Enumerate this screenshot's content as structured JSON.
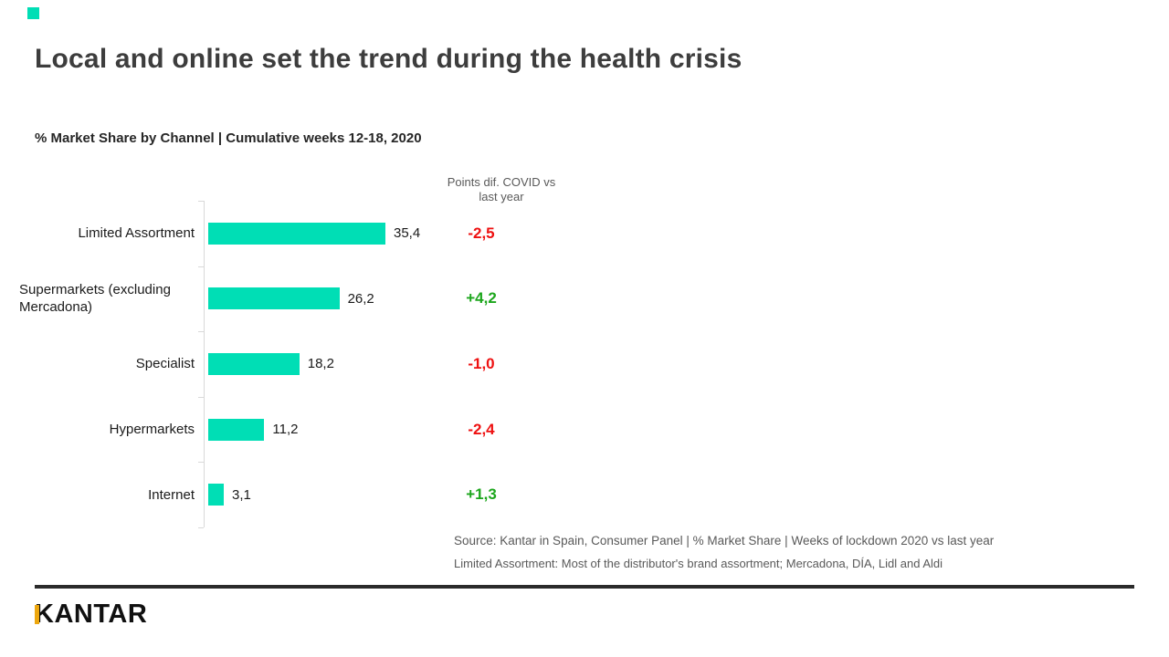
{
  "slide": {
    "title": "Local and online set the trend during the health crisis",
    "subtitle": "% Market Share by Channel | Cumulative weeks 12-18, 2020",
    "accent_color": "#00DEB5"
  },
  "diff_header": {
    "line1": "Points dif. COVID vs",
    "line2": "last year"
  },
  "chart_data": {
    "type": "bar",
    "orientation": "horizontal",
    "title": "% Market Share by Channel | Cumulative weeks 12-18, 2020",
    "categories": [
      "Limited Assortment",
      "Supermarkets (excluding Mercadona)",
      "Specialist",
      "Hypermarkets",
      "Internet"
    ],
    "values": [
      35.4,
      26.2,
      18.2,
      11.2,
      3.1
    ],
    "value_labels": [
      "35,4",
      "26,2",
      "18,2",
      "11,2",
      "3,1"
    ],
    "series_name": "% Market Share, cumulative weeks 12-18 2020",
    "diff_column_header": "Points dif. COVID vs last year",
    "diff_values": [
      -2.5,
      4.2,
      -1.0,
      -2.4,
      1.3
    ],
    "diff_labels": [
      "-2,5",
      "+4,2",
      "-1,0",
      "-2,4",
      "+1,3"
    ],
    "diff_colors": [
      "#ee1111",
      "#1ca61c",
      "#ee1111",
      "#ee1111",
      "#1ca61c"
    ],
    "bar_color": "#00DEB5",
    "negative_color": "#ee1111",
    "positive_color": "#1ca61c",
    "xlim": [
      0,
      40
    ],
    "grid": false,
    "legend_position": "none"
  },
  "source": {
    "line1": "Source: Kantar in Spain, Consumer Panel | % Market Share | Weeks of lockdown 2020 vs last year",
    "line2": "Limited Assortment: Most of the distributor's brand assortment; Mercadona, DÍA, Lidl and Aldi"
  },
  "footer": {
    "logo_text": "KANTAR"
  }
}
